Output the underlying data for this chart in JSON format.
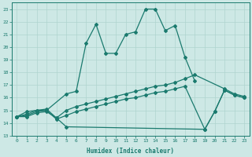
{
  "xlabel": "Humidex (Indice chaleur)",
  "xlim": [
    -0.5,
    23.5
  ],
  "ylim": [
    13,
    23.5
  ],
  "xticks": [
    0,
    1,
    2,
    3,
    4,
    5,
    6,
    7,
    8,
    9,
    10,
    11,
    12,
    13,
    14,
    15,
    16,
    17,
    18,
    19,
    20,
    21,
    22,
    23
  ],
  "yticks": [
    13,
    14,
    15,
    16,
    17,
    18,
    19,
    20,
    21,
    22,
    23
  ],
  "bg_color": "#cde8e5",
  "line_color": "#1a7a6e",
  "grid_color": "#afd4cf",
  "lines": [
    {
      "x": [
        0,
        1,
        2,
        3,
        5,
        6,
        7,
        8,
        9,
        10,
        11,
        12,
        13,
        14,
        15,
        16,
        17,
        18
      ],
      "y": [
        14.5,
        14.9,
        15.0,
        15.0,
        16.3,
        16.5,
        20.3,
        21.8,
        19.5,
        19.5,
        21.0,
        21.2,
        23.0,
        23.0,
        21.3,
        21.7,
        19.2,
        17.3
      ]
    },
    {
      "x": [
        0,
        1,
        2,
        3,
        4,
        5,
        6,
        7,
        8,
        9,
        10,
        11,
        12,
        13,
        14,
        15,
        16,
        17,
        18,
        21,
        22,
        23
      ],
      "y": [
        14.5,
        14.7,
        15.0,
        15.1,
        14.4,
        15.0,
        15.3,
        15.5,
        15.7,
        15.9,
        16.1,
        16.3,
        16.5,
        16.7,
        16.9,
        17.0,
        17.2,
        17.5,
        17.8,
        16.7,
        16.3,
        16.1
      ]
    },
    {
      "x": [
        0,
        1,
        2,
        3,
        4,
        5,
        6,
        7,
        8,
        9,
        10,
        11,
        12,
        13,
        14,
        15,
        16,
        17,
        19,
        20,
        21,
        22,
        23
      ],
      "y": [
        14.5,
        14.6,
        14.9,
        15.0,
        14.3,
        14.6,
        14.9,
        15.1,
        15.3,
        15.5,
        15.7,
        15.9,
        16.0,
        16.2,
        16.4,
        16.5,
        16.7,
        16.9,
        13.5,
        14.9,
        16.6,
        16.2,
        16.0
      ]
    },
    {
      "x": [
        0,
        1,
        2,
        3,
        4,
        5,
        19,
        20,
        21,
        22,
        23
      ],
      "y": [
        14.5,
        14.5,
        14.8,
        14.9,
        14.4,
        13.7,
        13.5,
        14.9,
        16.6,
        16.2,
        16.0
      ]
    }
  ],
  "marker": "D",
  "markersize": 2.0,
  "linewidth": 0.9
}
